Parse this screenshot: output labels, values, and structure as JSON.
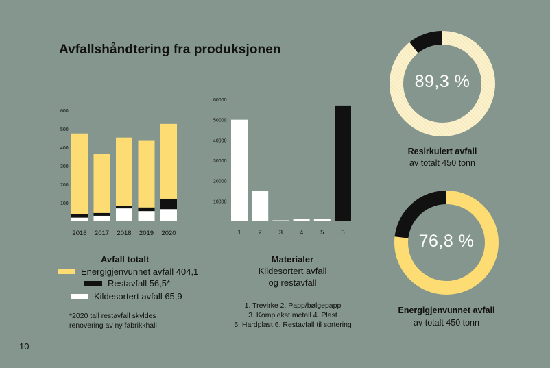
{
  "page": {
    "title": "Avfallshåndtering fra produksjonen",
    "page_number": "10"
  },
  "colors": {
    "background": "#84968d",
    "yellow": "#fddc73",
    "black": "#111111",
    "white": "#ffffff",
    "cream": "#fbf1cd"
  },
  "chart_data": [
    {
      "type": "bar",
      "stacked": true,
      "categories": [
        "2016",
        "2017",
        "2018",
        "2019",
        "2020"
      ],
      "series": [
        {
          "name": "Kildesortert avfall",
          "color": "#ffffff",
          "values": [
            20,
            30,
            70,
            55,
            65.9
          ]
        },
        {
          "name": "Restavfall",
          "color": "#111111",
          "values": [
            20,
            15,
            15,
            20,
            56.5
          ]
        },
        {
          "name": "Energigjenvunnet avfall",
          "color": "#fddc73",
          "values": [
            435,
            320,
            368,
            360,
            404.1
          ]
        }
      ],
      "y_ticks": [
        "100",
        "200",
        "300",
        "400",
        "500",
        "600"
      ],
      "ylim": [
        0,
        600
      ],
      "legend": {
        "title": "Avfall totalt",
        "items": [
          "Energigjenvunnet avfall 404,1",
          "Restavfall 56,5*",
          "Kildesortert avfall 65,9"
        ]
      },
      "note": [
        "*2020 tall restavfall skyldes",
        "renovering av ny fabrikkhall"
      ]
    },
    {
      "type": "bar",
      "categories": [
        "1",
        "2",
        "3",
        "4",
        "5",
        "6"
      ],
      "values": [
        50000,
        15000,
        300,
        1300,
        1300,
        57000
      ],
      "colors": [
        "#ffffff",
        "#ffffff",
        "#ffffff",
        "#ffffff",
        "#ffffff",
        "#111111"
      ],
      "y_ticks": [
        "10000",
        "20000",
        "30000",
        "40000",
        "50000",
        "60000"
      ],
      "ylim": [
        0,
        60000
      ],
      "legend": {
        "title": "Materialer",
        "subtitle": [
          "Kildesortert avfall",
          "og restavfall"
        ],
        "items": [
          "1. Trevirke  2. Papp/bølgepapp",
          "3. Komplekst metall  4. Plast",
          "5. Hardplast  6. Restavfall til sortering"
        ]
      }
    },
    {
      "type": "pie",
      "donut": true,
      "value_label": "89,3 %",
      "values": [
        89.3,
        10.7
      ],
      "colors": [
        "#fbf1cd",
        "#111111"
      ],
      "label": "Resirkulert avfall",
      "sublabel": "av totalt 450 tonn"
    },
    {
      "type": "pie",
      "donut": true,
      "value_label": "76,8 %",
      "values": [
        76.8,
        23.2
      ],
      "colors": [
        "#fddc73",
        "#111111"
      ],
      "label": "Energigjenvunnet avfall",
      "sublabel": "av totalt 450 tonn"
    }
  ]
}
